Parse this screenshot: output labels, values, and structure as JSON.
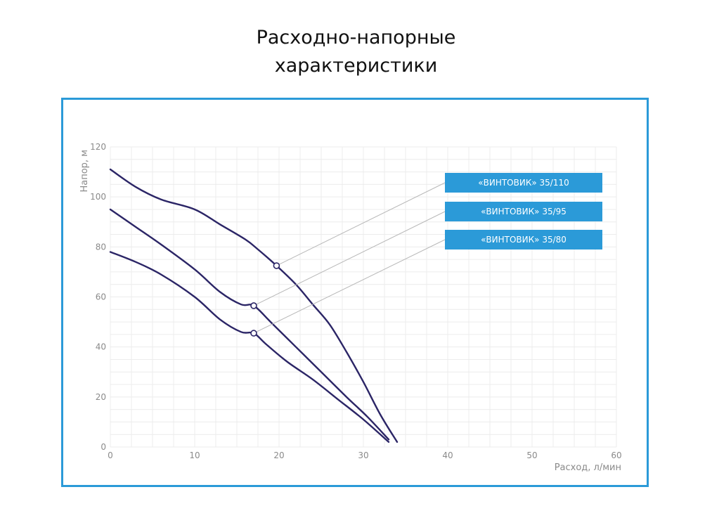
{
  "page_title": {
    "line1": "Расходно-напорные",
    "line2": "характеристики"
  },
  "colors": {
    "frame": "#2b9ad8",
    "curve": "#2b2566",
    "legend_bg": "#2b9ad8",
    "grid": "#ececec",
    "leader": "#b8b8b8"
  },
  "chart_data": {
    "type": "line",
    "title": "Расходно-напорные характеристики",
    "xlabel": "Расход, л/мин",
    "ylabel": "Напор, м",
    "xlim": [
      0,
      60
    ],
    "ylim": [
      0,
      120
    ],
    "xticks": [
      0,
      10,
      20,
      30,
      40,
      50,
      60
    ],
    "yticks": [
      0,
      20,
      40,
      60,
      80,
      100,
      120
    ],
    "grid": true,
    "legend_position": "top-right",
    "series": [
      {
        "name": "«ВИНТОВИК» 35/110",
        "x": [
          0,
          3,
          6,
          10,
          13,
          16,
          17.5,
          19.7,
          22,
          24,
          26,
          28,
          30,
          32,
          34
        ],
        "y": [
          111,
          104,
          99,
          95,
          89,
          83,
          79,
          72.5,
          65,
          57,
          49,
          38,
          26,
          13,
          2
        ],
        "marker": {
          "x": 19.7,
          "y": 72.5
        }
      },
      {
        "name": "«ВИНТОВИК» 35/95",
        "x": [
          0,
          3,
          6,
          10,
          13,
          15.5,
          17,
          19,
          22,
          25,
          28,
          30.5,
          33
        ],
        "y": [
          95,
          88,
          81,
          71,
          62,
          57,
          56.5,
          50,
          40,
          30,
          20,
          12,
          3
        ],
        "marker": {
          "x": 17,
          "y": 56.5
        }
      },
      {
        "name": "«ВИНТОВИК» 35/80",
        "x": [
          0,
          3,
          6,
          10,
          13,
          15.5,
          17,
          18.5,
          21,
          24,
          27,
          30,
          33
        ],
        "y": [
          78,
          74,
          69,
          60,
          51,
          46,
          45.5,
          41,
          34,
          27,
          19,
          11,
          2
        ],
        "marker": {
          "x": 17,
          "y": 45.5
        }
      }
    ]
  }
}
